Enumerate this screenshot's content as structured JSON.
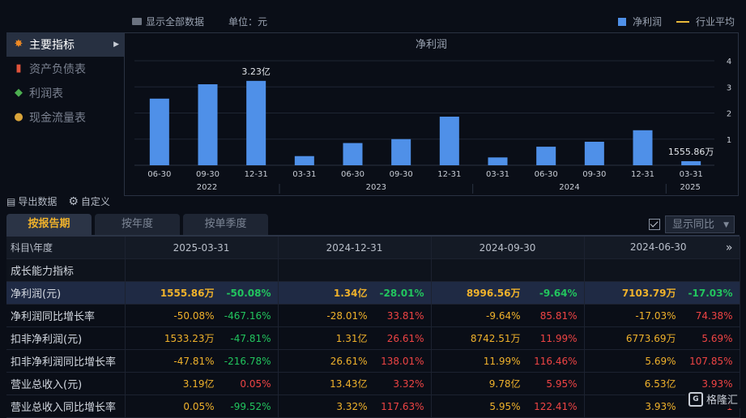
{
  "topbar": {
    "show_all": "显示全部数据",
    "unit": "单位：元",
    "legend_bar": "净利润",
    "legend_line": "行业平均"
  },
  "sidebar": {
    "items": [
      {
        "label": "主要指标",
        "icon": "star-icon",
        "active": true
      },
      {
        "label": "资产负债表",
        "icon": "document-icon",
        "active": false
      },
      {
        "label": "利润表",
        "icon": "cube-icon",
        "active": false
      },
      {
        "label": "现金流量表",
        "icon": "coins-icon",
        "active": false
      }
    ]
  },
  "chart_data": {
    "type": "bar",
    "title": "净利润",
    "categories": [
      "06-30",
      "09-30",
      "12-31",
      "03-31",
      "06-30",
      "09-30",
      "12-31",
      "03-31",
      "06-30",
      "09-30",
      "12-31",
      "03-31"
    ],
    "years": [
      {
        "label": "2022",
        "from": 0,
        "to": 2
      },
      {
        "label": "2023",
        "from": 3,
        "to": 6
      },
      {
        "label": "2024",
        "from": 7,
        "to": 10
      },
      {
        "label": "2025",
        "from": 11,
        "to": 11
      }
    ],
    "values": [
      2.55,
      3.1,
      3.23,
      0.35,
      0.85,
      1.0,
      1.86,
      0.3,
      0.71,
      0.9,
      1.34,
      0.156
    ],
    "annotations": [
      {
        "index": 2,
        "text": "3.23亿"
      },
      {
        "index": 11,
        "text": "1555.86万"
      }
    ],
    "yticks": [
      1,
      2,
      3,
      4
    ],
    "ylim": [
      0,
      4
    ],
    "grid": true,
    "bar_color": "#4f90e8"
  },
  "tools": {
    "export": "导出数据",
    "custom": "自定义"
  },
  "tabs": [
    {
      "label": "按报告期",
      "active": true
    },
    {
      "label": "按年度",
      "active": false
    },
    {
      "label": "按单季度",
      "active": false
    }
  ],
  "yoy_label": "显示同比",
  "table": {
    "header": [
      "科目\\年度",
      "2025-03-31",
      "2024-12-31",
      "2024-09-30",
      "2024-06-30"
    ],
    "section": "成长能力指标",
    "rows": [
      {
        "label": "净利润(元)",
        "highlight": true,
        "cells": [
          {
            "v": "1555.86万",
            "c": "-50.08%",
            "cc": "g"
          },
          {
            "v": "1.34亿",
            "c": "-28.01%",
            "cc": "g"
          },
          {
            "v": "8996.56万",
            "c": "-9.64%",
            "cc": "g"
          },
          {
            "v": "7103.79万",
            "c": "-17.03%",
            "cc": "g"
          }
        ]
      },
      {
        "label": "净利润同比增长率",
        "highlight": false,
        "cells": [
          {
            "v": "-50.08%",
            "c": "-467.16%",
            "cc": "g"
          },
          {
            "v": "-28.01%",
            "c": "33.81%",
            "cc": "r"
          },
          {
            "v": "-9.64%",
            "c": "85.81%",
            "cc": "r"
          },
          {
            "v": "-17.03%",
            "c": "74.38%",
            "cc": "r"
          }
        ]
      },
      {
        "label": "扣非净利润(元)",
        "highlight": false,
        "cells": [
          {
            "v": "1533.23万",
            "c": "-47.81%",
            "cc": "g"
          },
          {
            "v": "1.31亿",
            "c": "26.61%",
            "cc": "r"
          },
          {
            "v": "8742.51万",
            "c": "11.99%",
            "cc": "r"
          },
          {
            "v": "6773.69万",
            "c": "5.69%",
            "cc": "r"
          }
        ]
      },
      {
        "label": "扣非净利润同比增长率",
        "highlight": false,
        "cells": [
          {
            "v": "-47.81%",
            "c": "-216.78%",
            "cc": "g"
          },
          {
            "v": "26.61%",
            "c": "138.01%",
            "cc": "r"
          },
          {
            "v": "11.99%",
            "c": "116.46%",
            "cc": "r"
          },
          {
            "v": "5.69%",
            "c": "107.85%",
            "cc": "r"
          }
        ]
      },
      {
        "label": "营业总收入(元)",
        "highlight": false,
        "cells": [
          {
            "v": "3.19亿",
            "c": "0.05%",
            "cc": "r"
          },
          {
            "v": "13.43亿",
            "c": "3.32%",
            "cc": "r"
          },
          {
            "v": "9.78亿",
            "c": "5.95%",
            "cc": "r"
          },
          {
            "v": "6.53亿",
            "c": "3.93%",
            "cc": "r"
          }
        ]
      },
      {
        "label": "营业总收入同比增长率",
        "highlight": false,
        "cells": [
          {
            "v": "0.05%",
            "c": "-99.52%",
            "cc": "g"
          },
          {
            "v": "3.32%",
            "c": "117.63%",
            "cc": "r"
          },
          {
            "v": "5.95%",
            "c": "122.41%",
            "cc": "r"
          },
          {
            "v": "3.93%",
            "c": "1",
            "cc": "r"
          }
        ]
      }
    ]
  },
  "logo_text": "格隆汇"
}
